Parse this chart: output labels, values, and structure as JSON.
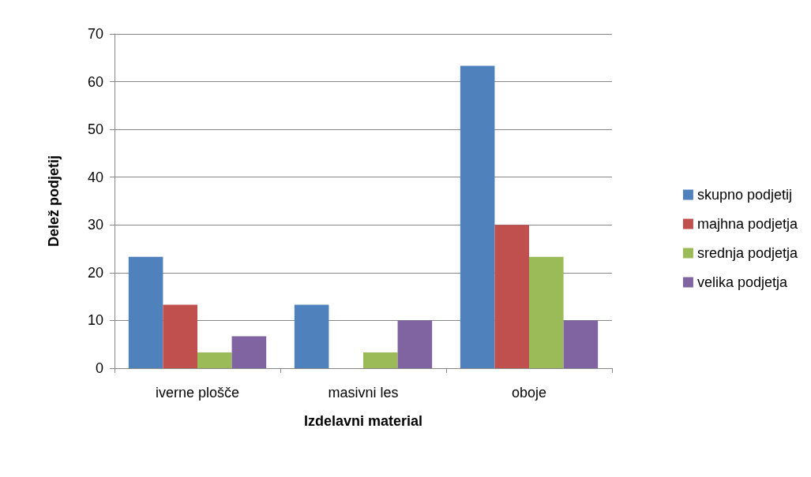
{
  "chart_data": {
    "type": "bar",
    "xlabel": "Izdelavni material",
    "ylabel": "Delež podjetij",
    "categories": [
      "iverne plošče",
      "masivni les",
      "oboje"
    ],
    "series": [
      {
        "name": "skupno podjetij",
        "color": "#4f81bd",
        "values": [
          23.3,
          13.3,
          63.3
        ]
      },
      {
        "name": "majhna podjetja",
        "color": "#c0504d",
        "values": [
          13.3,
          0,
          30
        ]
      },
      {
        "name": "srednja podjetja",
        "color": "#9bbb59",
        "values": [
          3.3,
          3.3,
          23.3
        ]
      },
      {
        "name": "velika podjetja",
        "color": "#8064a2",
        "values": [
          6.7,
          10,
          10
        ]
      }
    ],
    "ylim": [
      0,
      70
    ],
    "yticks": [
      0,
      10,
      20,
      30,
      40,
      50,
      60,
      70
    ],
    "grid": "y",
    "legend": "right"
  }
}
